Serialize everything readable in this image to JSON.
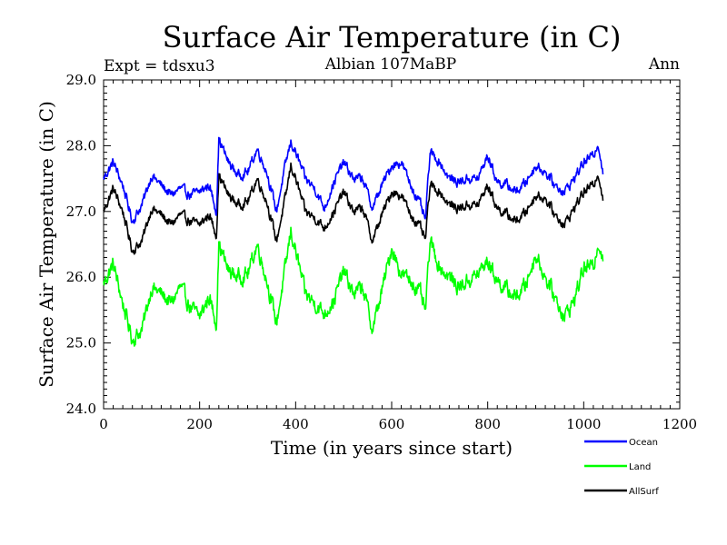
{
  "chart_data": {
    "type": "line",
    "title": "Surface Air Temperature (in C)",
    "subtitle_left": "Expt = tdsxu3",
    "subtitle_center": "Albian   107MaBP",
    "subtitle_right": "Ann",
    "xlabel": "Time (in years since start)",
    "ylabel": "Surface Air Temperature (in C)",
    "xlim": [
      0,
      1200
    ],
    "ylim": [
      24.0,
      29.0
    ],
    "x_ticks": [
      0,
      200,
      400,
      600,
      800,
      1000,
      1200
    ],
    "x_tick_labels": [
      "0",
      "200",
      "400",
      "600",
      "800",
      "1000",
      "1200"
    ],
    "y_ticks": [
      24.0,
      25.0,
      26.0,
      27.0,
      28.0,
      29.0
    ],
    "y_tick_labels": [
      "24.0",
      "25.0",
      "26.0",
      "27.0",
      "28.0",
      "29.0"
    ],
    "grid": false,
    "legend_position": "bottom-right",
    "series": [
      {
        "name": "Ocean",
        "color": "#0000ff",
        "x": [
          0,
          20,
          40,
          60,
          80,
          100,
          120,
          140,
          160,
          180,
          200,
          220,
          235,
          240,
          260,
          280,
          300,
          320,
          340,
          360,
          380,
          390,
          400,
          420,
          440,
          460,
          480,
          500,
          520,
          540,
          560,
          580,
          600,
          620,
          640,
          660,
          670,
          680,
          700,
          720,
          740,
          760,
          780,
          800,
          820,
          840,
          860,
          880,
          900,
          920,
          940,
          960,
          980,
          1000,
          1020,
          1030,
          1040
        ],
        "values": [
          27.5,
          27.75,
          27.4,
          26.85,
          27.1,
          27.55,
          27.4,
          27.25,
          27.35,
          27.25,
          27.3,
          27.4,
          27.0,
          28.1,
          27.75,
          27.55,
          27.6,
          27.95,
          27.6,
          27.0,
          27.75,
          28.05,
          27.9,
          27.5,
          27.35,
          27.05,
          27.45,
          27.75,
          27.5,
          27.5,
          27.05,
          27.4,
          27.7,
          27.75,
          27.4,
          27.1,
          26.85,
          27.9,
          27.75,
          27.5,
          27.45,
          27.5,
          27.5,
          27.85,
          27.45,
          27.4,
          27.3,
          27.45,
          27.7,
          27.6,
          27.4,
          27.3,
          27.5,
          27.75,
          27.85,
          28.05,
          27.6
        ]
      },
      {
        "name": "Land",
        "color": "#00ff00",
        "x": [
          0,
          20,
          40,
          60,
          80,
          100,
          120,
          140,
          160,
          180,
          200,
          220,
          235,
          240,
          260,
          280,
          300,
          320,
          340,
          360,
          380,
          390,
          400,
          420,
          440,
          460,
          480,
          500,
          520,
          540,
          560,
          580,
          600,
          620,
          640,
          660,
          670,
          680,
          700,
          720,
          740,
          760,
          780,
          800,
          820,
          840,
          860,
          880,
          900,
          920,
          940,
          960,
          980,
          1000,
          1020,
          1030,
          1040
        ],
        "values": [
          25.9,
          26.2,
          25.6,
          25.05,
          25.2,
          25.85,
          25.75,
          25.6,
          25.85,
          25.55,
          25.4,
          25.7,
          25.3,
          26.5,
          26.1,
          26.0,
          26.05,
          26.5,
          25.95,
          25.3,
          26.2,
          26.7,
          26.4,
          25.75,
          25.6,
          25.45,
          25.65,
          26.1,
          25.75,
          25.85,
          25.2,
          25.8,
          26.45,
          26.05,
          25.95,
          25.75,
          25.45,
          26.55,
          26.15,
          26.0,
          25.85,
          25.95,
          26.05,
          26.25,
          25.95,
          25.8,
          25.7,
          25.9,
          26.35,
          26.0,
          25.7,
          25.4,
          25.65,
          26.15,
          26.15,
          26.55,
          26.3
        ]
      },
      {
        "name": "AllSurf",
        "color": "#000000",
        "x": [
          0,
          20,
          40,
          60,
          80,
          100,
          120,
          140,
          160,
          180,
          200,
          220,
          235,
          240,
          260,
          280,
          300,
          320,
          340,
          360,
          380,
          390,
          400,
          420,
          440,
          460,
          480,
          500,
          520,
          540,
          560,
          580,
          600,
          620,
          640,
          660,
          670,
          680,
          700,
          720,
          740,
          760,
          780,
          800,
          820,
          840,
          860,
          880,
          900,
          920,
          940,
          960,
          980,
          1000,
          1020,
          1030,
          1040
        ],
        "values": [
          27.0,
          27.35,
          27.0,
          26.4,
          26.55,
          27.05,
          26.95,
          26.8,
          26.95,
          26.85,
          26.8,
          26.95,
          26.65,
          27.55,
          27.25,
          27.1,
          27.15,
          27.5,
          27.15,
          26.55,
          27.25,
          27.7,
          27.5,
          27.0,
          26.9,
          26.75,
          27.0,
          27.3,
          27.0,
          27.05,
          26.55,
          26.95,
          27.3,
          27.25,
          26.95,
          26.75,
          26.55,
          27.4,
          27.3,
          27.1,
          27.05,
          27.1,
          27.1,
          27.4,
          27.05,
          26.95,
          26.85,
          27.0,
          27.25,
          27.2,
          26.95,
          26.8,
          27.05,
          27.3,
          27.4,
          27.6,
          27.2
        ]
      }
    ]
  }
}
